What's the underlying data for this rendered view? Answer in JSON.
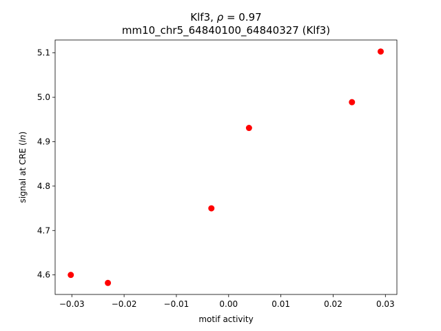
{
  "chart_data": {
    "type": "scatter",
    "title_prefix": "Klf3, ",
    "title_rho": "ρ",
    "title_suffix": " = 0.97",
    "subtitle": "mm10_chr5_64840100_64840327 (Klf3)",
    "xlabel": "motif activity",
    "ylabel_prefix": "signal at CRE (",
    "ylabel_italic": "ln",
    "ylabel_suffix": ")",
    "xlim": [
      -0.0332,
      0.0322
    ],
    "ylim": [
      4.556,
      5.129
    ],
    "xticks": [
      -0.03,
      -0.02,
      -0.01,
      0.0,
      0.01,
      0.02,
      0.03
    ],
    "xtick_labels": [
      "−0.03",
      "−0.02",
      "−0.01",
      "0.00",
      "0.01",
      "0.02",
      "0.03"
    ],
    "yticks": [
      4.6,
      4.7,
      4.8,
      4.9,
      5.0,
      5.1
    ],
    "ytick_labels": [
      "4.6",
      "4.7",
      "4.8",
      "4.9",
      "5.0",
      "5.1"
    ],
    "marker_color": "#ff0000",
    "grid": false,
    "points": [
      {
        "x": -0.0302,
        "y": 4.6
      },
      {
        "x": -0.0231,
        "y": 4.582
      },
      {
        "x": -0.0033,
        "y": 4.75
      },
      {
        "x": 0.0039,
        "y": 4.931
      },
      {
        "x": 0.0236,
        "y": 4.989
      },
      {
        "x": 0.0291,
        "y": 5.103
      }
    ]
  }
}
